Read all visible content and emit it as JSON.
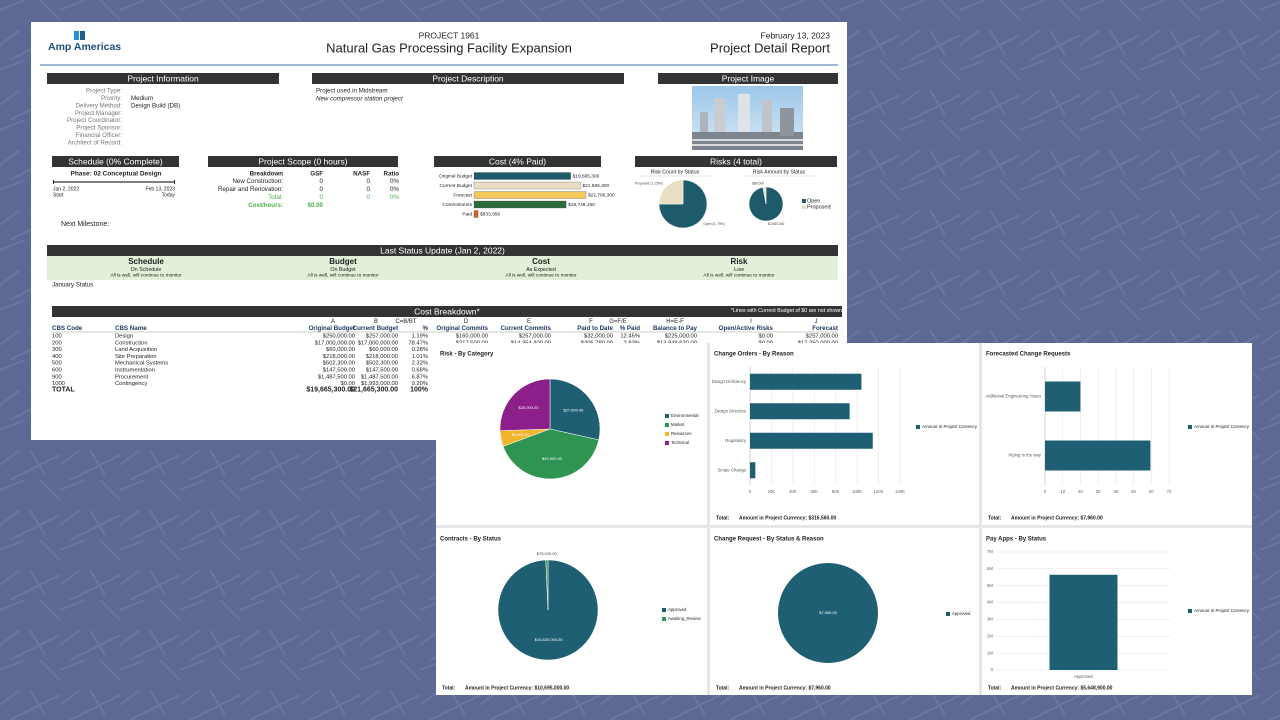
{
  "header": {
    "logo": "Amp Americas",
    "project": "PROJECT 1961",
    "title": "Natural Gas Processing Facility Expansion",
    "date": "February 13, 2023",
    "report": "Project Detail Report"
  },
  "project_information": {
    "title": "Project Information",
    "fields": [
      {
        "label": "Project Type:"
      },
      {
        "label": "Priority:",
        "value": "Medium"
      },
      {
        "label": "Delivery Method:",
        "value": "Design Build (DB)"
      },
      {
        "label": "Project Manager:"
      },
      {
        "label": "Project Coordinator:"
      },
      {
        "label": "Project Sponsor:"
      },
      {
        "label": "Financial Officer:"
      },
      {
        "label": "Architect of Record:"
      }
    ]
  },
  "project_description": {
    "title": "Project Description",
    "lines": [
      "Project used in Midstream",
      "New compressor station project"
    ]
  },
  "project_image": {
    "title": "Project Image"
  },
  "schedule": {
    "title": "Schedule (0% Complete)",
    "phase": "Phase: 02 Conceptual Design",
    "start_date": "Jan 2, 2022",
    "start_label": "Start",
    "today_date": "Feb 13, 2023",
    "today_label": "Today",
    "next_milestone": "Next Milestone:"
  },
  "project_scope": {
    "title": "Project Scope (0 hours)",
    "columns": [
      "Breakdown",
      "GSF",
      "NASF",
      "Ratio"
    ],
    "rows": [
      [
        "New Construction:",
        "0",
        "0",
        "0%"
      ],
      [
        "Repair and Renovation:",
        "0",
        "0",
        "0%"
      ],
      [
        "Total:",
        "0",
        "0",
        "0%"
      ]
    ],
    "cost_hours": [
      "Cost/hours:",
      "$0.00"
    ]
  },
  "cost": {
    "title": "Cost (4% Paid)",
    "type": "bar",
    "categories": [
      "Original Budget",
      "Current Budget",
      "Forecast",
      "Commitments",
      "Paid"
    ],
    "values": [
      19665300,
      21665300,
      22795300,
      18749150,
      833956
    ],
    "value_labels": [
      "$19,665,300",
      "$21,665,300",
      "$22,795,300",
      "$18,749,150",
      "$833,956"
    ],
    "colors": [
      "#1f5a6b",
      "#e9dec4",
      "#f3c95e",
      "#2d6b3c",
      "#d8612b"
    ]
  },
  "risks": {
    "title": "Risks (4 total)",
    "legend": [
      "Open",
      "Proposed"
    ],
    "colors": [
      "#1f5a6b",
      "#e9dec4"
    ],
    "charts": [
      {
        "title": "Risk Count by Status",
        "type": "pie",
        "values": [
          3,
          1
        ],
        "value_labels": [
          "Open (3, 75%)",
          "Proposed (1, 25%)"
        ]
      },
      {
        "title": "Risk Amount by Status",
        "type": "pie",
        "values": [
          2650000,
          80000
        ],
        "value_labels": [
          "$2,650,000",
          "$80,000"
        ]
      }
    ]
  },
  "status_update": {
    "title": "Last Status Update (Jan 2, 2022)",
    "columns": [
      {
        "title": "Schedule",
        "status": "On Schedule",
        "note": "All is well, will continue to monitor"
      },
      {
        "title": "Budget",
        "status": "On Budget",
        "note": "All is well, will continue to monitor"
      },
      {
        "title": "Cost",
        "status": "As Expected",
        "note": "All is well, will continue to monitor"
      },
      {
        "title": "Risk",
        "status": "Low",
        "note": "All is well, will continue to monitor"
      }
    ],
    "comment": "January Status"
  },
  "cost_breakdown": {
    "title": "Cost Breakdown*",
    "note": "*Lines with Current Budget of $0 are not shown",
    "letters": [
      "A",
      "B",
      "C=B/BT",
      "D",
      "E",
      "F",
      "G=F/E",
      "H=E-F",
      "I",
      "J"
    ],
    "columns": [
      "CBS Code",
      "CBS Name",
      "Original Budget",
      "Current Budget",
      "%",
      "Original Commits",
      "Current Commits",
      "Paid to Date",
      "% Paid",
      "Balance to Pay",
      "Open/Active Risks",
      "Forecast"
    ],
    "rows": [
      [
        "100",
        "Design",
        "$250,000.00",
        "$257,000.00",
        "1.19%",
        "$160,000.00",
        "$257,000.00",
        "$32,000.00",
        "12.45%",
        "$225,000.00",
        "$0.00",
        "$257,000.00"
      ],
      [
        "200",
        "Construction",
        "$17,000,000.00",
        "$17,000,000.00",
        "78.47%",
        "$217,500.00",
        "$14,354,400.00",
        "$405,780.00",
        "2.83%",
        "$13,948,620.00",
        "$0.00",
        "$17,250,000.00"
      ],
      [
        "300",
        "Land Acquisition",
        "$60,000.00",
        "$60,000.00",
        "0.28%"
      ],
      [
        "400",
        "Site Preparation",
        "$218,000.00",
        "$218,000.00",
        "1.01%"
      ],
      [
        "500",
        "Mechanical Systems",
        "$502,300.00",
        "$502,300.00",
        "2.32%"
      ],
      [
        "600",
        "Instrumentation",
        "$147,500.00",
        "$147,500.00",
        "0.68%"
      ],
      [
        "900",
        "Procurement",
        "$1,487,500.00",
        "$1,487,500.00",
        "6.87%"
      ],
      [
        "1000",
        "Contingency",
        "$0.00",
        "$1,993,000.00",
        "9.20%"
      ]
    ],
    "total": [
      "TOTAL",
      "$19,665,300.00",
      "$21,665,300.00",
      "100%"
    ]
  },
  "dashboard": {
    "panels": [
      {
        "title": "Risk - By Category",
        "type": "pie",
        "categories": [
          "Environmental",
          "Market",
          "Resources",
          "Technical"
        ],
        "values": [
          27900,
          40000,
          5000,
          25000
        ],
        "value_labels": [
          "$27,900.00",
          "$40,000.00",
          "$5,000.00",
          "$25,000.00"
        ],
        "colors": [
          "#1f5f73",
          "#2f9451",
          "#f2b42b",
          "#8c1f8a"
        ]
      },
      {
        "title": "Change Orders - By Reason",
        "type": "hbar",
        "categories": [
          "Design Deficiency",
          "Design Directive",
          "Regulatory",
          "Scope Change"
        ],
        "series": [
          {
            "name": "Amount in Project Currency",
            "color": "#1f5f73",
            "values": [
              104000,
              93000,
              114560,
              5000
            ]
          }
        ],
        "xlim": [
          0,
          140000
        ],
        "xticks": [
          0,
          {
            "value": 20000,
            "label": "20K"
          },
          {
            "value": 40000,
            "label": "40K"
          },
          {
            "value": 60000,
            "label": "60K"
          },
          {
            "value": 80000,
            "label": "80K"
          },
          {
            "value": 100000,
            "label": "100K"
          },
          {
            "value": 120000,
            "label": "120K"
          },
          {
            "value": 140000,
            "label": "140K"
          }
        ],
        "total_label": "Total:",
        "total_text": "Amount in Project Currency: $316,560.00"
      },
      {
        "title": "Forecasted Change Requests",
        "type": "hbar",
        "categories": [
          "Additional Engineering Hours",
          "Piping in the way"
        ],
        "series": [
          {
            "name": "Amount in Project Currency",
            "color": "#1f5f73",
            "values": [
              20,
              59.5
            ]
          }
        ],
        "xlim": [
          0,
          70
        ],
        "xticks": [
          0,
          10,
          20,
          30,
          40,
          50,
          60,
          70
        ],
        "total_label": "Total:",
        "total_text": "Amount in Project Currency: $7,960.00"
      },
      {
        "title": "Contracts - By Status",
        "type": "pie",
        "categories": [
          "Approved",
          "Awaiting_Review"
        ],
        "values": [
          10620000,
          75000
        ],
        "value_labels": [
          "$10,620,000.00",
          "$75,000.00"
        ],
        "colors": [
          "#1f5f73",
          "#2f9451"
        ],
        "total_label": "Total:",
        "total_text": "Amount in Project Currency: $10,695,000.00"
      },
      {
        "title": "Change Request - By Status & Reason",
        "type": "pie",
        "categories": [
          "Approved"
        ],
        "values": [
          7960
        ],
        "value_labels": [
          "$7,960.00"
        ],
        "colors": [
          "#1f5f73"
        ],
        "total_label": "Total:",
        "total_text": "Amount in Project Currency: $7,960.00"
      },
      {
        "title": "Pay Apps - By Status",
        "type": "vbar",
        "categories": [
          "Approved"
        ],
        "series": [
          {
            "name": "Amount in Project Currency",
            "color": "#1f5f73",
            "values": [
              5648900
            ]
          }
        ],
        "ylim": [
          0,
          7000000
        ],
        "yticks": [
          0,
          {
            "value": 1000000,
            "label": "1M"
          },
          {
            "value": 2000000,
            "label": "2M"
          },
          {
            "value": 3000000,
            "label": "3M"
          },
          {
            "value": 4000000,
            "label": "4M"
          },
          {
            "value": 5000000,
            "label": "5M"
          },
          {
            "value": 6000000,
            "label": "6M"
          },
          {
            "value": 7000000,
            "label": "7M"
          }
        ],
        "total_label": "Total:",
        "total_text": "Amount in Project Currency: $5,648,900.00"
      }
    ]
  }
}
